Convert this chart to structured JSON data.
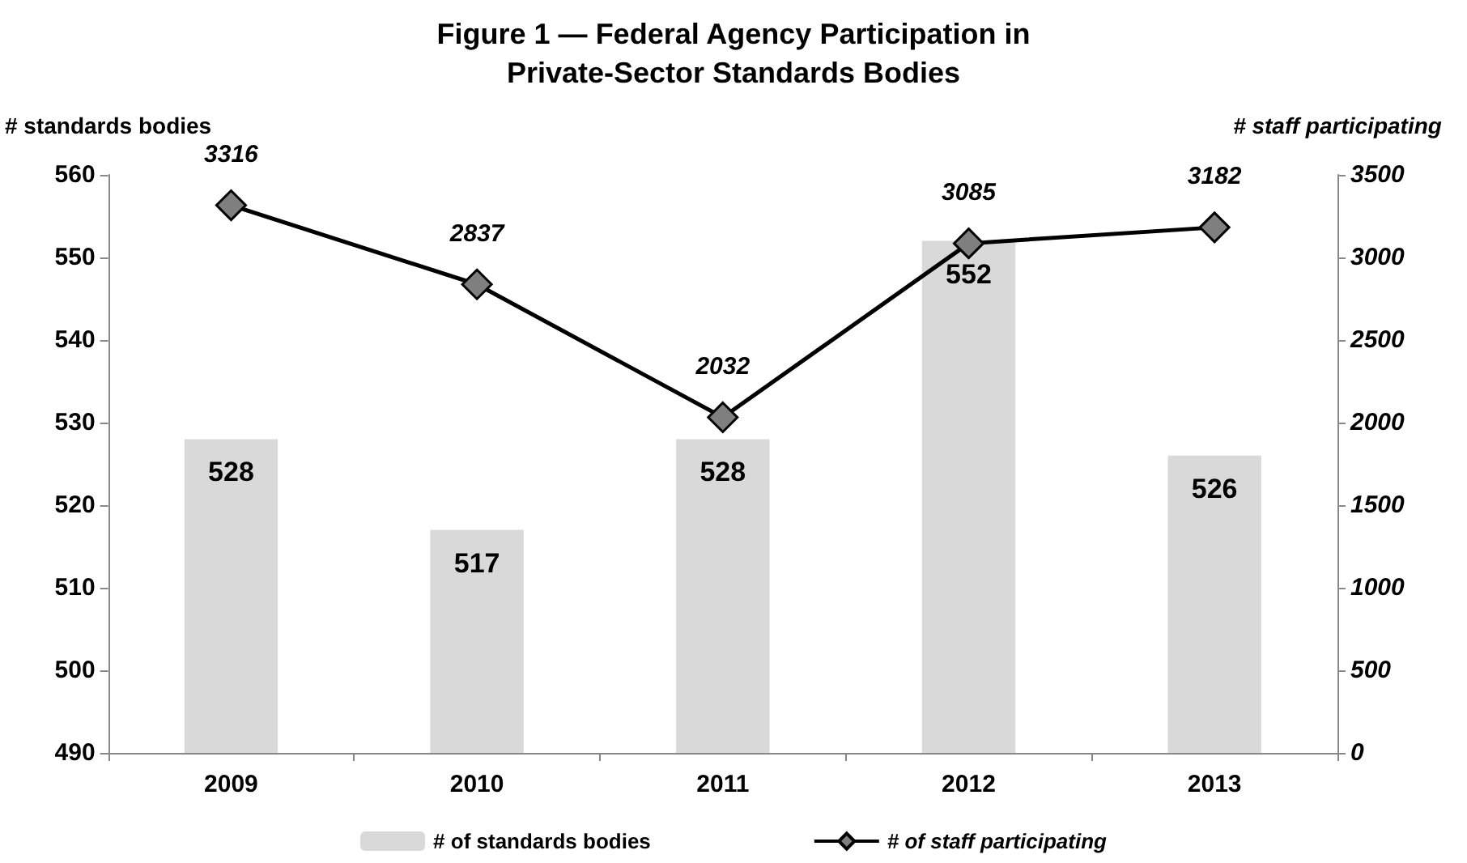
{
  "chart_data": {
    "type": "bar",
    "title": "Figure 1 — Federal Agency Participation in\nPrivate-Sector Standards Bodies",
    "ylabel": "# standards bodies",
    "y2label": "# staff participating",
    "categories": [
      "2009",
      "2010",
      "2011",
      "2012",
      "2013"
    ],
    "series": [
      {
        "name": "# of standards bodies",
        "color": "#d9d9d9",
        "values": [
          528,
          517,
          528,
          552,
          526
        ]
      },
      {
        "name": "# of staff participating",
        "type": "line",
        "axis": "y2",
        "color": "#000000",
        "marker": "diamond",
        "values": [
          3316,
          2837,
          2032,
          3085,
          3182
        ]
      }
    ],
    "ylim": [
      490,
      560
    ],
    "yticks": [
      490,
      500,
      510,
      520,
      530,
      540,
      550,
      560
    ],
    "y2lim": [
      0,
      3500
    ],
    "y2ticks": [
      0,
      500,
      1000,
      1500,
      2000,
      2500,
      3000,
      3500
    ],
    "data_labels": true,
    "grid": false,
    "legend": "bottom"
  }
}
